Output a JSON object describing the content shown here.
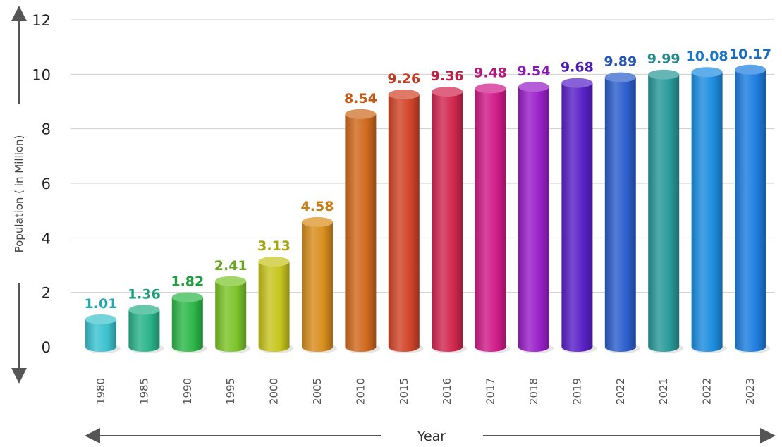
{
  "chart_data": {
    "type": "bar",
    "title": "",
    "xlabel": "Year",
    "ylabel": "Population ( in Million)",
    "ylim": [
      0,
      12
    ],
    "yticks": [
      0,
      2,
      4,
      6,
      8,
      10,
      12
    ],
    "grid": true,
    "categories": [
      "1980",
      "1985",
      "1990",
      "1995",
      "2000",
      "2005",
      "2010",
      "2015",
      "2016",
      "2017",
      "2018",
      "2019",
      "2022",
      "2021",
      "2022",
      "2023"
    ],
    "values": [
      1.01,
      1.36,
      1.82,
      2.41,
      3.13,
      4.58,
      8.54,
      9.26,
      9.36,
      9.48,
      9.54,
      9.68,
      9.89,
      9.99,
      10.08,
      10.17
    ],
    "value_labels": [
      "1.01",
      "1.36",
      "1.82",
      "2.41",
      "3.13",
      "4.58",
      "8.54",
      "9.26",
      "9.36",
      "9.48",
      "9.54",
      "9.68",
      "9.89",
      "9.99",
      "10.08",
      "10.17"
    ],
    "colors": [
      "#3cc3cf",
      "#2bb38a",
      "#2eb84a",
      "#7cc42a",
      "#c7c51e",
      "#d98e1e",
      "#cf6a1e",
      "#d2462a",
      "#d22850",
      "#d01d8a",
      "#9a20c8",
      "#5a22c8",
      "#2d5fcc",
      "#2a9a9a",
      "#1e8ee0",
      "#1f7fe0"
    ],
    "label_colors": [
      "#2aa6b3",
      "#1e9a78",
      "#1f9e3c",
      "#6aa41e",
      "#a8a417",
      "#c87d14",
      "#c05a14",
      "#c43b22",
      "#bd1f45",
      "#b41a7a",
      "#8a1ab4",
      "#4a1cb0",
      "#2456b8",
      "#23898c",
      "#1a76c8",
      "#1a6cc0"
    ]
  }
}
